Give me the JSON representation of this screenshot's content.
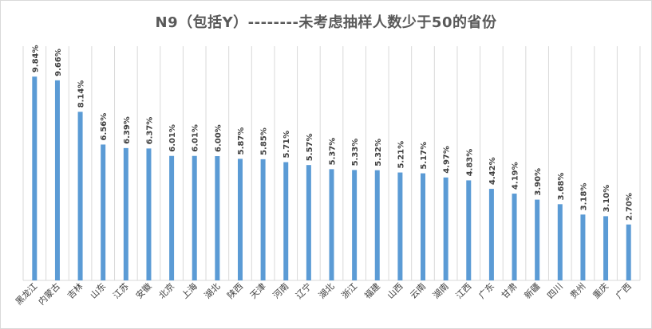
{
  "chart_data": {
    "type": "bar",
    "title": "N9（包括Y）--------未考虑抽样人数少于50的省份",
    "categories": [
      "黑龙江",
      "内蒙古",
      "吉林",
      "山东",
      "江苏",
      "安徽",
      "北京",
      "上海",
      "湖北",
      "陕西",
      "天津",
      "河南",
      "辽宁",
      "湖北",
      "浙江",
      "福建",
      "山西",
      "云南",
      "湖南",
      "江西",
      "广东",
      "甘肃",
      "新疆",
      "四川",
      "贵州",
      "重庆",
      "广西"
    ],
    "values": [
      9.84,
      9.66,
      8.14,
      6.56,
      6.39,
      6.37,
      6.01,
      6.01,
      6.0,
      5.87,
      5.85,
      5.71,
      5.57,
      5.37,
      5.33,
      5.32,
      5.21,
      5.17,
      4.97,
      4.83,
      4.42,
      4.19,
      3.9,
      3.68,
      3.18,
      3.1,
      2.7
    ],
    "labels": [
      "9.84%",
      "9.66%",
      "8.14%",
      "6.56%",
      "6.39%",
      "6.37%",
      "6.01%",
      "6.01%",
      "6.00%",
      "5.87%",
      "5.85%",
      "5.71%",
      "5.57%",
      "5.37%",
      "5.33%",
      "5.32%",
      "5.21%",
      "5.17%",
      "4.97%",
      "4.83%",
      "4.42%",
      "4.19%",
      "3.90%",
      "3.68%",
      "3.18%",
      "3.10%",
      "2.70%"
    ],
    "ylim": [
      0,
      12
    ],
    "grid": "vertical lines",
    "bar_color": "#5b9bd5",
    "grid_color": "#d9d9d9"
  }
}
